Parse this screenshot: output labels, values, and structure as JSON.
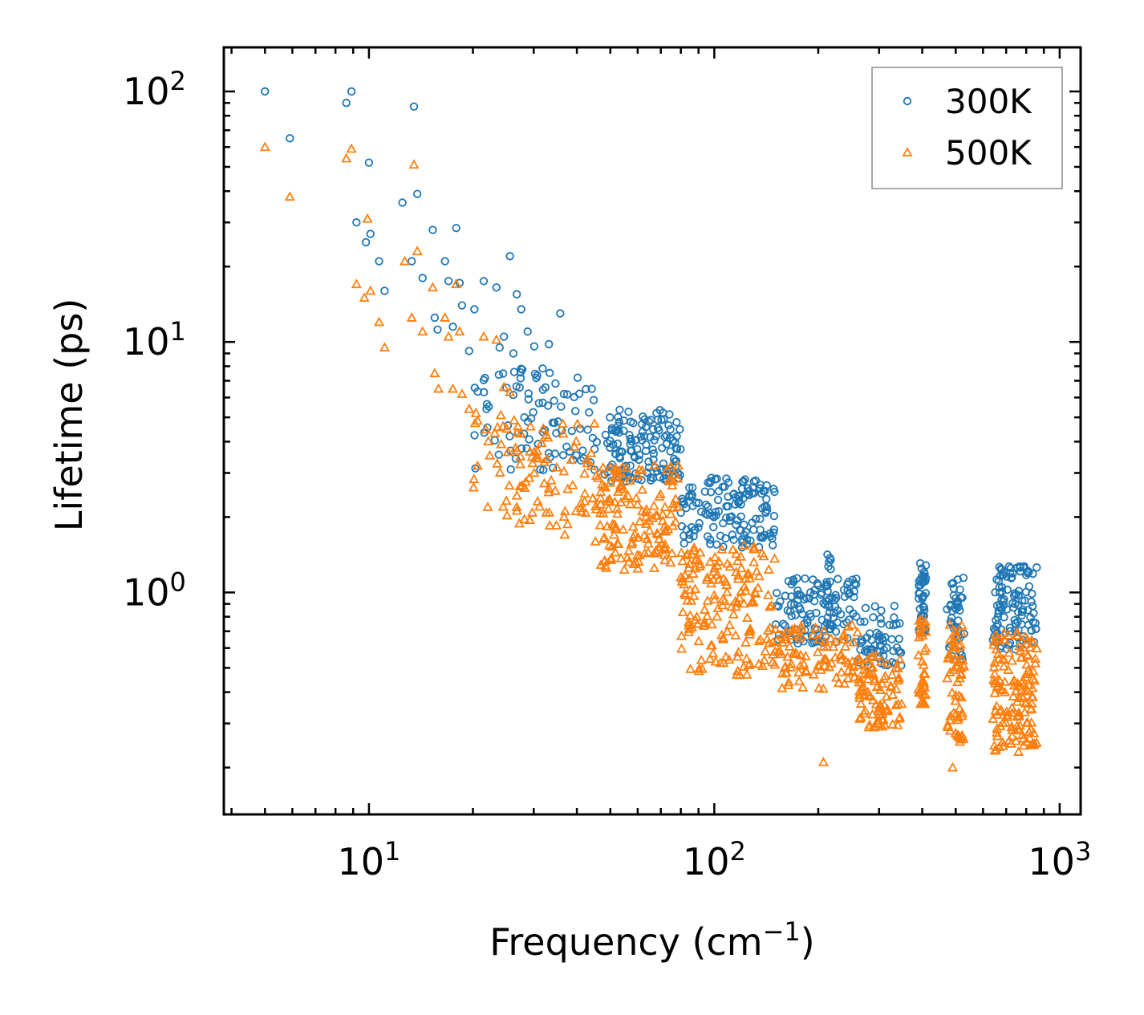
{
  "chart_data": {
    "type": "scatter",
    "title": "",
    "xlabel": "Frequency (cm",
    "xlabel_sup": "−1",
    "xlabel_end": ")",
    "ylabel": "Lifetime (ps)",
    "xscale": "log",
    "yscale": "log",
    "xlim": [
      3.8,
      1150
    ],
    "ylim": [
      0.13,
      150
    ],
    "x_ticks": [
      {
        "base": "10",
        "exp": "1",
        "value": 10
      },
      {
        "base": "10",
        "exp": "2",
        "value": 100
      },
      {
        "base": "10",
        "exp": "3",
        "value": 1000
      }
    ],
    "y_ticks": [
      {
        "base": "10",
        "exp": "0",
        "value": 1
      },
      {
        "base": "10",
        "exp": "1",
        "value": 10
      },
      {
        "base": "10",
        "exp": "2",
        "value": 100
      }
    ],
    "legend_position": "top-right",
    "series": [
      {
        "name": "300K",
        "marker": "circle",
        "color": "#1f77b4",
        "points": [
          [
            5.0,
            100
          ],
          [
            5.9,
            65
          ],
          [
            8.6,
            90
          ],
          [
            8.9,
            100
          ],
          [
            9.2,
            30
          ],
          [
            9.8,
            25
          ],
          [
            10.0,
            52
          ],
          [
            10.1,
            27
          ],
          [
            10.7,
            21
          ],
          [
            11.1,
            16
          ],
          [
            12.5,
            36
          ],
          [
            13.3,
            21
          ],
          [
            13.5,
            87
          ],
          [
            13.8,
            39
          ],
          [
            14.3,
            18
          ],
          [
            15.3,
            28
          ],
          [
            15.5,
            12.5
          ],
          [
            15.8,
            11.2
          ],
          [
            16.6,
            21
          ],
          [
            17.0,
            17.5
          ],
          [
            17.5,
            11.5
          ],
          [
            17.9,
            28.5
          ],
          [
            18.3,
            17.2
          ],
          [
            18.6,
            14
          ],
          [
            19.5,
            9.2
          ],
          [
            20.2,
            13.5
          ],
          [
            21.5,
            17.5
          ],
          [
            23.4,
            16.5
          ],
          [
            23.9,
            9.5
          ],
          [
            24.6,
            10.5
          ],
          [
            25.6,
            22
          ],
          [
            26.2,
            9
          ],
          [
            26.8,
            15.5
          ],
          [
            27.6,
            13.5
          ],
          [
            28.8,
            11
          ],
          [
            30.1,
            9.6
          ],
          [
            33.2,
            9.8
          ],
          [
            35.8,
            13
          ],
          [
            36.7,
            6.2
          ],
          [
            40.2,
            7.2
          ]
        ],
        "bands": [
          {
            "x_range": [
              20,
              45
            ],
            "y_range": [
              2.5,
              10
            ],
            "count": 90
          },
          {
            "x_range": [
              45,
              80
            ],
            "y_range": [
              2.4,
              6.2
            ],
            "count": 140
          },
          {
            "x_range": [
              80,
              150
            ],
            "y_range": [
              1.3,
              3.3
            ],
            "count": 140
          },
          {
            "x_range": [
              150,
              260
            ],
            "y_range": [
              0.55,
              1.3
            ],
            "count": 110
          },
          {
            "x_range": [
              210,
              225
            ],
            "y_range": [
              0.6,
              1.7
            ],
            "count": 25
          },
          {
            "x_range": [
              260,
              350
            ],
            "y_range": [
              0.45,
              1.0
            ],
            "count": 60
          },
          {
            "x_range": [
              390,
              410
            ],
            "y_range": [
              0.6,
              1.5
            ],
            "count": 40
          },
          {
            "x_range": [
              470,
              530
            ],
            "y_range": [
              0.45,
              1.45
            ],
            "count": 40
          },
          {
            "x_range": [
              640,
              860
            ],
            "y_range": [
              0.5,
              1.5
            ],
            "count": 110
          }
        ]
      },
      {
        "name": "500K",
        "marker": "triangle",
        "color": "#ff7f0e",
        "points": [
          [
            5.0,
            60
          ],
          [
            5.9,
            38
          ],
          [
            8.6,
            54
          ],
          [
            8.9,
            59
          ],
          [
            9.2,
            17
          ],
          [
            9.7,
            15
          ],
          [
            9.9,
            31
          ],
          [
            10.1,
            16
          ],
          [
            10.7,
            12
          ],
          [
            11.1,
            9.5
          ],
          [
            12.7,
            21
          ],
          [
            13.3,
            12.5
          ],
          [
            13.5,
            51
          ],
          [
            13.8,
            23
          ],
          [
            14.3,
            11
          ],
          [
            15.3,
            16.5
          ],
          [
            15.5,
            7.5
          ],
          [
            15.9,
            6.5
          ],
          [
            16.6,
            12.5
          ],
          [
            17.0,
            10.5
          ],
          [
            17.5,
            6.5
          ],
          [
            17.9,
            17
          ],
          [
            18.3,
            11
          ],
          [
            18.6,
            6.2
          ],
          [
            19.5,
            5.4
          ],
          [
            20.4,
            5.2
          ],
          [
            21.5,
            10.5
          ],
          [
            23.4,
            10.2
          ],
          [
            24.1,
            5.1
          ],
          [
            24.6,
            6.6
          ],
          [
            25.6,
            6.3
          ],
          [
            27.0,
            4.6
          ],
          [
            30.1,
            3.0
          ],
          [
            31.2,
            2.2
          ],
          [
            33.2,
            2.6
          ],
          [
            34.9,
            1.85
          ],
          [
            36.9,
            1.7
          ],
          [
            44.0,
            3.6
          ],
          [
            207,
            0.21
          ],
          [
            490,
            0.2
          ]
        ],
        "bands": [
          {
            "x_range": [
              20,
              45
            ],
            "y_range": [
              1.5,
              6
            ],
            "count": 90
          },
          {
            "x_range": [
              45,
              80
            ],
            "y_range": [
              1.0,
              4.0
            ],
            "count": 150
          },
          {
            "x_range": [
              80,
              150
            ],
            "y_range": [
              0.36,
              2.0
            ],
            "count": 170
          },
          {
            "x_range": [
              150,
              260
            ],
            "y_range": [
              0.36,
              0.85
            ],
            "count": 90
          },
          {
            "x_range": [
              260,
              350
            ],
            "y_range": [
              0.25,
              0.65
            ],
            "count": 90
          },
          {
            "x_range": [
              390,
              410
            ],
            "y_range": [
              0.3,
              0.95
            ],
            "count": 35
          },
          {
            "x_range": [
              470,
              530
            ],
            "y_range": [
              0.2,
              0.95
            ],
            "count": 60
          },
          {
            "x_range": [
              640,
              860
            ],
            "y_range": [
              0.18,
              0.9
            ],
            "count": 140
          }
        ]
      }
    ]
  }
}
